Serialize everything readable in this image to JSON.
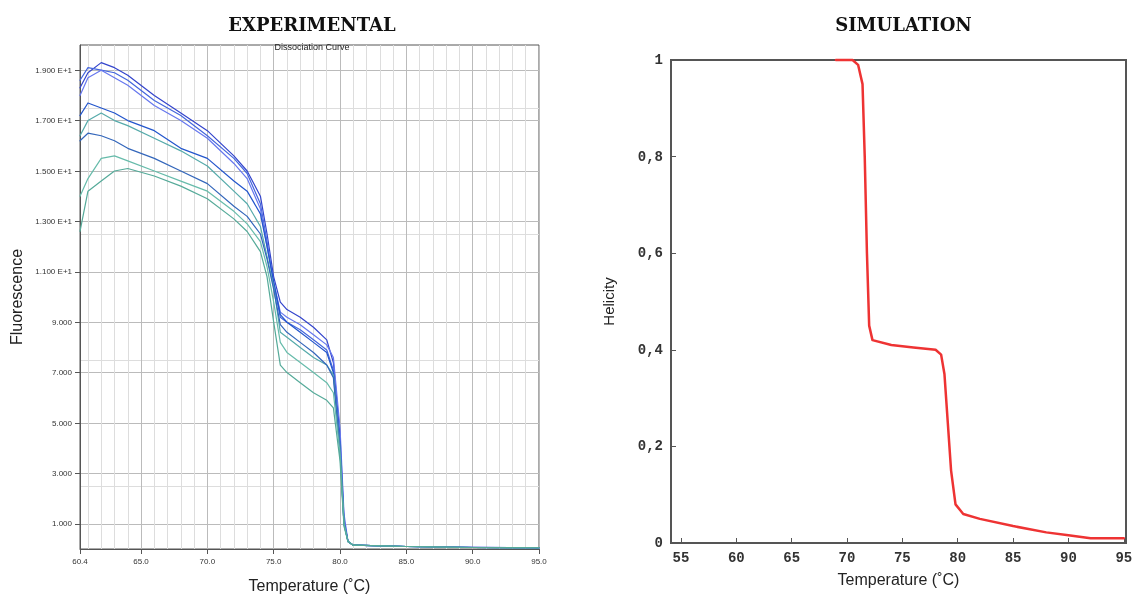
{
  "chart_data": [
    {
      "type": "line",
      "title": "EXPERIMENTAL",
      "subtitle": "Dissociation Curve",
      "xlabel": "Temperature (˚C)",
      "ylabel": "Fluorescence",
      "x": [
        60.4,
        61,
        62,
        63,
        64,
        66,
        68,
        70,
        72,
        73,
        74,
        74.5,
        75,
        75.5,
        76,
        77,
        78,
        79,
        79.5,
        80,
        80.3,
        80.6,
        81,
        85,
        90,
        95
      ],
      "series": [
        {
          "color": "#3344cc",
          "values": [
            18.3,
            18.9,
            19.3,
            19.1,
            18.8,
            18.0,
            17.3,
            16.6,
            15.6,
            15.0,
            14.0,
            12.5,
            10.8,
            9.8,
            9.5,
            9.2,
            8.8,
            8.3,
            7.4,
            4.5,
            1.2,
            0.3,
            0.15,
            0.1,
            0.07,
            0.05
          ]
        },
        {
          "color": "#4466dd",
          "values": [
            18.6,
            19.1,
            19.0,
            18.9,
            18.6,
            17.8,
            17.2,
            16.4,
            15.5,
            14.9,
            13.7,
            12.2,
            10.5,
            9.2,
            9.0,
            8.7,
            8.3,
            7.9,
            7.1,
            4.0,
            1.0,
            0.3,
            0.15,
            0.1,
            0.06,
            0.05
          ]
        },
        {
          "color": "#6677ee",
          "values": [
            18.0,
            18.7,
            19.0,
            18.7,
            18.4,
            17.6,
            17.0,
            16.3,
            15.3,
            14.7,
            13.5,
            12.0,
            10.6,
            9.4,
            9.2,
            8.9,
            8.5,
            8.1,
            7.6,
            4.8,
            1.4,
            0.3,
            0.15,
            0.1,
            0.07,
            0.05
          ]
        },
        {
          "color": "#2255cc",
          "values": [
            17.2,
            17.7,
            17.5,
            17.3,
            17.0,
            16.6,
            15.9,
            15.5,
            14.6,
            14.2,
            13.3,
            12.0,
            10.6,
            9.3,
            9.0,
            8.6,
            8.2,
            7.8,
            7.0,
            4.2,
            1.1,
            0.3,
            0.15,
            0.1,
            0.06,
            0.05
          ]
        },
        {
          "color": "#55aaaa",
          "values": [
            16.4,
            17.0,
            17.3,
            17.0,
            16.8,
            16.3,
            15.8,
            15.2,
            14.2,
            13.7,
            12.8,
            11.6,
            10.4,
            8.6,
            8.4,
            8.0,
            7.6,
            7.3,
            6.9,
            4.0,
            1.0,
            0.3,
            0.15,
            0.1,
            0.06,
            0.05
          ]
        },
        {
          "color": "#3366bb",
          "values": [
            16.2,
            16.5,
            16.4,
            16.2,
            15.9,
            15.5,
            15.0,
            14.5,
            13.6,
            13.2,
            12.5,
            11.5,
            10.3,
            8.9,
            8.6,
            8.2,
            7.8,
            7.3,
            6.8,
            3.9,
            1.0,
            0.3,
            0.15,
            0.1,
            0.06,
            0.05
          ]
        },
        {
          "color": "#66bbaa",
          "values": [
            14.0,
            14.7,
            15.5,
            15.6,
            15.4,
            15.0,
            14.6,
            14.2,
            13.4,
            12.9,
            12.2,
            11.2,
            9.8,
            8.2,
            7.8,
            7.4,
            7.0,
            6.6,
            6.2,
            3.8,
            1.0,
            0.3,
            0.15,
            0.1,
            0.06,
            0.05
          ]
        },
        {
          "color": "#55aa99",
          "values": [
            12.6,
            14.2,
            14.6,
            15.0,
            15.1,
            14.8,
            14.4,
            13.9,
            13.1,
            12.6,
            11.8,
            10.8,
            9.0,
            7.3,
            7.0,
            6.6,
            6.2,
            5.9,
            5.6,
            3.5,
            0.9,
            0.3,
            0.15,
            0.1,
            0.06,
            0.05
          ]
        }
      ],
      "xlim": [
        60.4,
        95
      ],
      "ylim": [
        0,
        20
      ],
      "xticks": [
        {
          "value": 60.4,
          "label": "60.4"
        },
        {
          "value": 65,
          "label": "65.0"
        },
        {
          "value": 70,
          "label": "70.0"
        },
        {
          "value": 75,
          "label": "75.0"
        },
        {
          "value": 80,
          "label": "80.0"
        },
        {
          "value": 85,
          "label": "85.0"
        },
        {
          "value": 90,
          "label": "90.0"
        },
        {
          "value": 95,
          "label": "95.0"
        }
      ],
      "yticks": [
        {
          "value": 1,
          "label": "1.000"
        },
        {
          "value": 3,
          "label": "3.000"
        },
        {
          "value": 5,
          "label": "5.000"
        },
        {
          "value": 7,
          "label": "7.000"
        },
        {
          "value": 9,
          "label": "9.000"
        },
        {
          "value": 11,
          "label": "1.100 E+1"
        },
        {
          "value": 13,
          "label": "1.300 E+1"
        },
        {
          "value": 15,
          "label": "1.500 E+1"
        },
        {
          "value": 17,
          "label": "1.700 E+1"
        },
        {
          "value": 19,
          "label": "1.900 E+1"
        }
      ],
      "grid": true,
      "marker": "none",
      "line_style": "solid"
    },
    {
      "type": "line",
      "title": "SIMULATION",
      "xlabel": "Temperature (˚C)",
      "ylabel": "Helicity",
      "x": [
        69,
        70.5,
        71,
        71.4,
        71.6,
        71.8,
        72,
        72.3,
        74,
        76,
        78,
        78.5,
        78.8,
        79.1,
        79.4,
        79.8,
        80.5,
        82,
        85,
        88,
        90,
        92,
        95
      ],
      "series": [
        {
          "color": "#ee3333",
          "values": [
            1,
            1,
            0.99,
            0.95,
            0.8,
            0.6,
            0.45,
            0.42,
            0.41,
            0.405,
            0.4,
            0.39,
            0.35,
            0.25,
            0.15,
            0.08,
            0.06,
            0.05,
            0.035,
            0.022,
            0.016,
            0.01,
            0.01
          ]
        }
      ],
      "xlim": [
        54.1,
        95.2
      ],
      "ylim": [
        0,
        1
      ],
      "xticks": [
        55,
        60,
        65,
        70,
        75,
        80,
        85,
        90,
        95
      ],
      "yticks": [
        0,
        {
          "value": 0.2,
          "label": "0,2"
        },
        {
          "value": 0.4,
          "label": "0,4"
        },
        {
          "value": 0.6,
          "label": "0,6"
        },
        {
          "value": 0.8,
          "label": "0,8"
        },
        1
      ],
      "grid": false,
      "marker": "none",
      "line_style": "solid"
    }
  ]
}
